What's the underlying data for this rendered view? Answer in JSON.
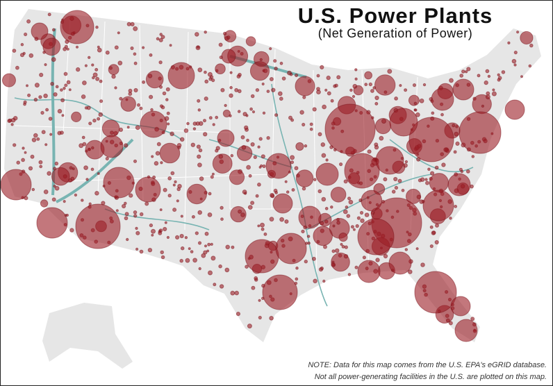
{
  "header": {
    "title": "U.S. Power Plants",
    "subtitle": "(Net Generation of Power)"
  },
  "footer": {
    "note_lines": [
      "NOTE: Data for this map comes from the U.S. EPA's eGRID database.",
      "Not all power-generating facilities in the U.S. are plotted on this map."
    ]
  }
}
